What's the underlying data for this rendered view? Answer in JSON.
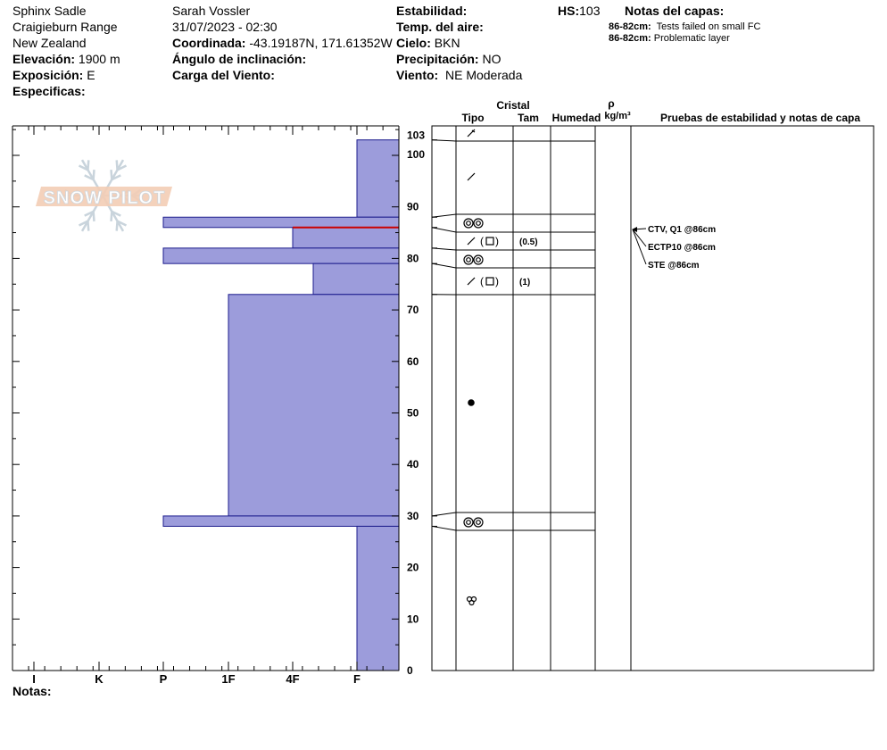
{
  "header": {
    "location": "Sphinx Sadle",
    "range": "Craigieburn Range",
    "country": "New Zealand",
    "elevation_label": "Elevación:",
    "elevation_value": "1900 m",
    "aspect_label": "Exposición:",
    "aspect_value": "E",
    "specifics_label": "Especificas:",
    "observer": "Sarah Vossler",
    "datetime": "31/07/2023 - 02:30",
    "coord_label": "Coordinada:",
    "coord_value": "-43.19187N, 171.61352W",
    "slope_label": "Ángulo de inclinación:",
    "wind_load_label": "Carga del Viento:",
    "stability_label": "Estabilidad:",
    "air_temp_label": "Temp. del aire:",
    "sky_label": "Cielo:",
    "sky_value": "BKN",
    "precip_label": "Precipitación:",
    "precip_value": "NO",
    "wind_label": "Viento:",
    "wind_value": "NE Moderada",
    "hs_label": "HS:",
    "hs_value": "103",
    "layer_notes_title": "Notas del capas:",
    "layer_notes": [
      {
        "range": "86-82cm:",
        "text": "Tests failed on small FC"
      },
      {
        "range": "86-82cm:",
        "text": "Problematic layer"
      }
    ]
  },
  "footer": {
    "notes_label": "Notas:"
  },
  "logo": {
    "text": "SNOW PILOT"
  },
  "chart_data": {
    "type": "bar",
    "hs": 103,
    "y_ticks": [
      0,
      10,
      20,
      30,
      40,
      50,
      60,
      70,
      80,
      90,
      100,
      103
    ],
    "ylim": [
      0,
      103
    ],
    "hardness_scale": [
      "I",
      "K",
      "P",
      "1F",
      "4F",
      "F"
    ],
    "layers": [
      {
        "top": 103,
        "bottom": 88,
        "hardness": "F"
      },
      {
        "top": 88,
        "bottom": 86,
        "hardness": "P"
      },
      {
        "top": 86,
        "bottom": 82,
        "hardness": "4F"
      },
      {
        "top": 82,
        "bottom": 79,
        "hardness": "P"
      },
      {
        "top": 79,
        "bottom": 73,
        "hardness": "4F-"
      },
      {
        "top": 73,
        "bottom": 30,
        "hardness": "1F"
      },
      {
        "top": 30,
        "bottom": 28,
        "hardness": "P"
      },
      {
        "top": 28,
        "bottom": 0,
        "hardness": "F"
      }
    ],
    "weak_layer_cm": 86,
    "table_headers": {
      "crystal": "Cristal",
      "type": "Tipo",
      "size": "Tam",
      "moisture": "Humedad",
      "rho": "ρ",
      "density_unit": "kg/m³",
      "tests": "Pruebas de estabilidad y notas de capa"
    },
    "crystals": [
      {
        "height": 103,
        "symbol": "decomposing",
        "size": ""
      },
      {
        "height": 96,
        "symbol": "decomposing",
        "size": ""
      },
      {
        "height": 87,
        "symbol": "melt-freeze",
        "size": ""
      },
      {
        "height": 84,
        "symbol": "facet-mixed",
        "size": "(0.5)"
      },
      {
        "height": 80.5,
        "symbol": "melt-freeze",
        "size": ""
      },
      {
        "height": 76,
        "symbol": "facet-mixed",
        "size": "(1)"
      },
      {
        "height": 51.5,
        "symbol": "rounded",
        "size": ""
      },
      {
        "height": 29,
        "symbol": "melt-freeze",
        "size": ""
      },
      {
        "height": 13.5,
        "symbol": "melt-forms",
        "size": ""
      }
    ],
    "stability_tests": [
      "CTV, Q1 @86cm",
      "ECTP10 @86cm",
      "STE @86cm"
    ]
  }
}
